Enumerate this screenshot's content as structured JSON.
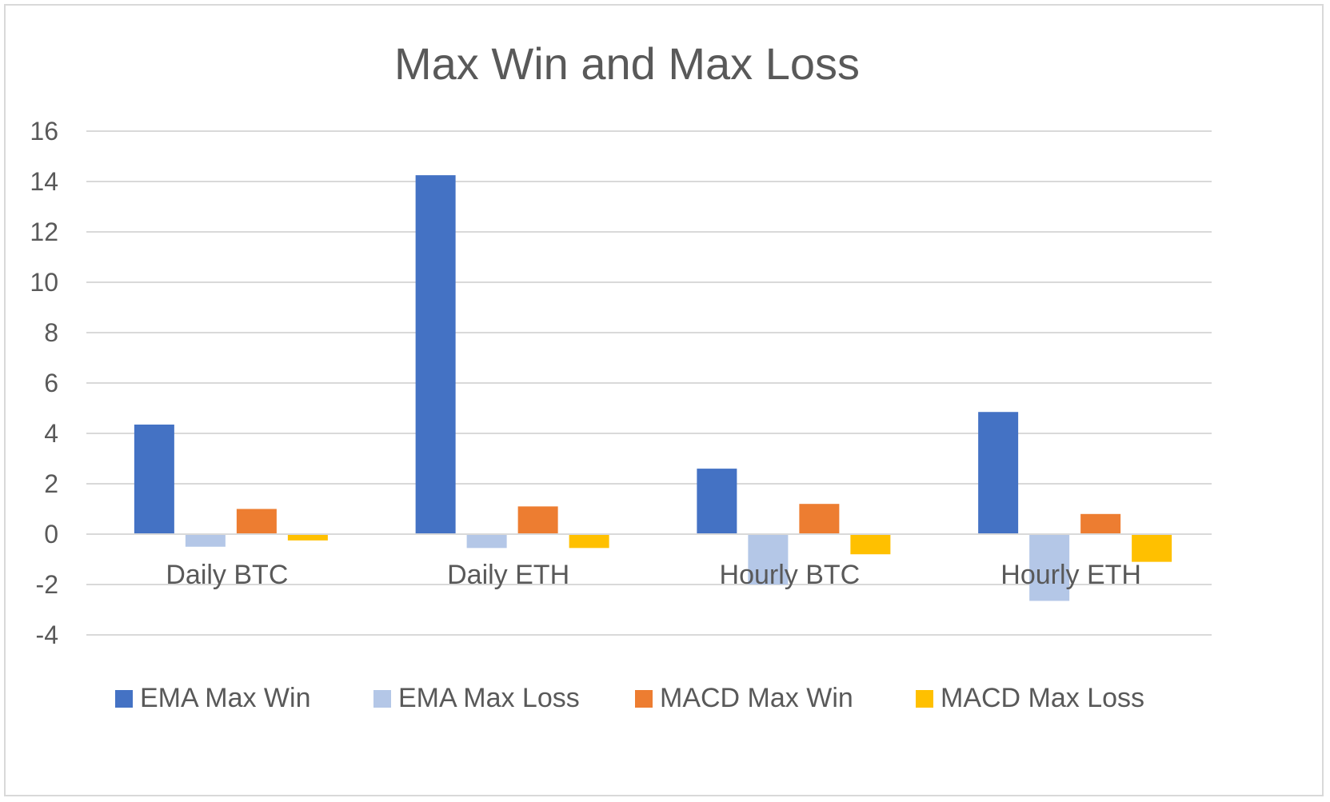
{
  "chart_data": {
    "type": "bar",
    "title": "Max Win and Max Loss",
    "xlabel": "",
    "ylabel": "",
    "categories": [
      "Daily BTC",
      "Daily ETH",
      "Hourly BTC",
      "Hourly ETH"
    ],
    "series": [
      {
        "name": "EMA Max Win",
        "color": "#4472c4",
        "values": [
          4.35,
          14.25,
          2.6,
          4.85
        ]
      },
      {
        "name": "EMA Max Loss",
        "color": "#b4c7e7",
        "values": [
          -0.5,
          -0.55,
          -2.0,
          -2.65
        ]
      },
      {
        "name": "MACD Max Win",
        "color": "#ed7d31",
        "values": [
          1.0,
          1.1,
          1.2,
          0.8
        ]
      },
      {
        "name": "MACD Max Loss",
        "color": "#ffc000",
        "values": [
          -0.25,
          -0.55,
          -0.8,
          -1.1
        ]
      }
    ],
    "ylim": [
      -4,
      16
    ],
    "yticks": [
      16,
      14,
      12,
      10,
      8,
      6,
      4,
      2,
      0,
      -2,
      -4
    ],
    "ytick_labels": [
      "16",
      "14",
      "12",
      "10",
      "8",
      "6",
      "4",
      "2",
      "0",
      "-2",
      "-4"
    ],
    "grid": true,
    "legend": "bottom"
  }
}
